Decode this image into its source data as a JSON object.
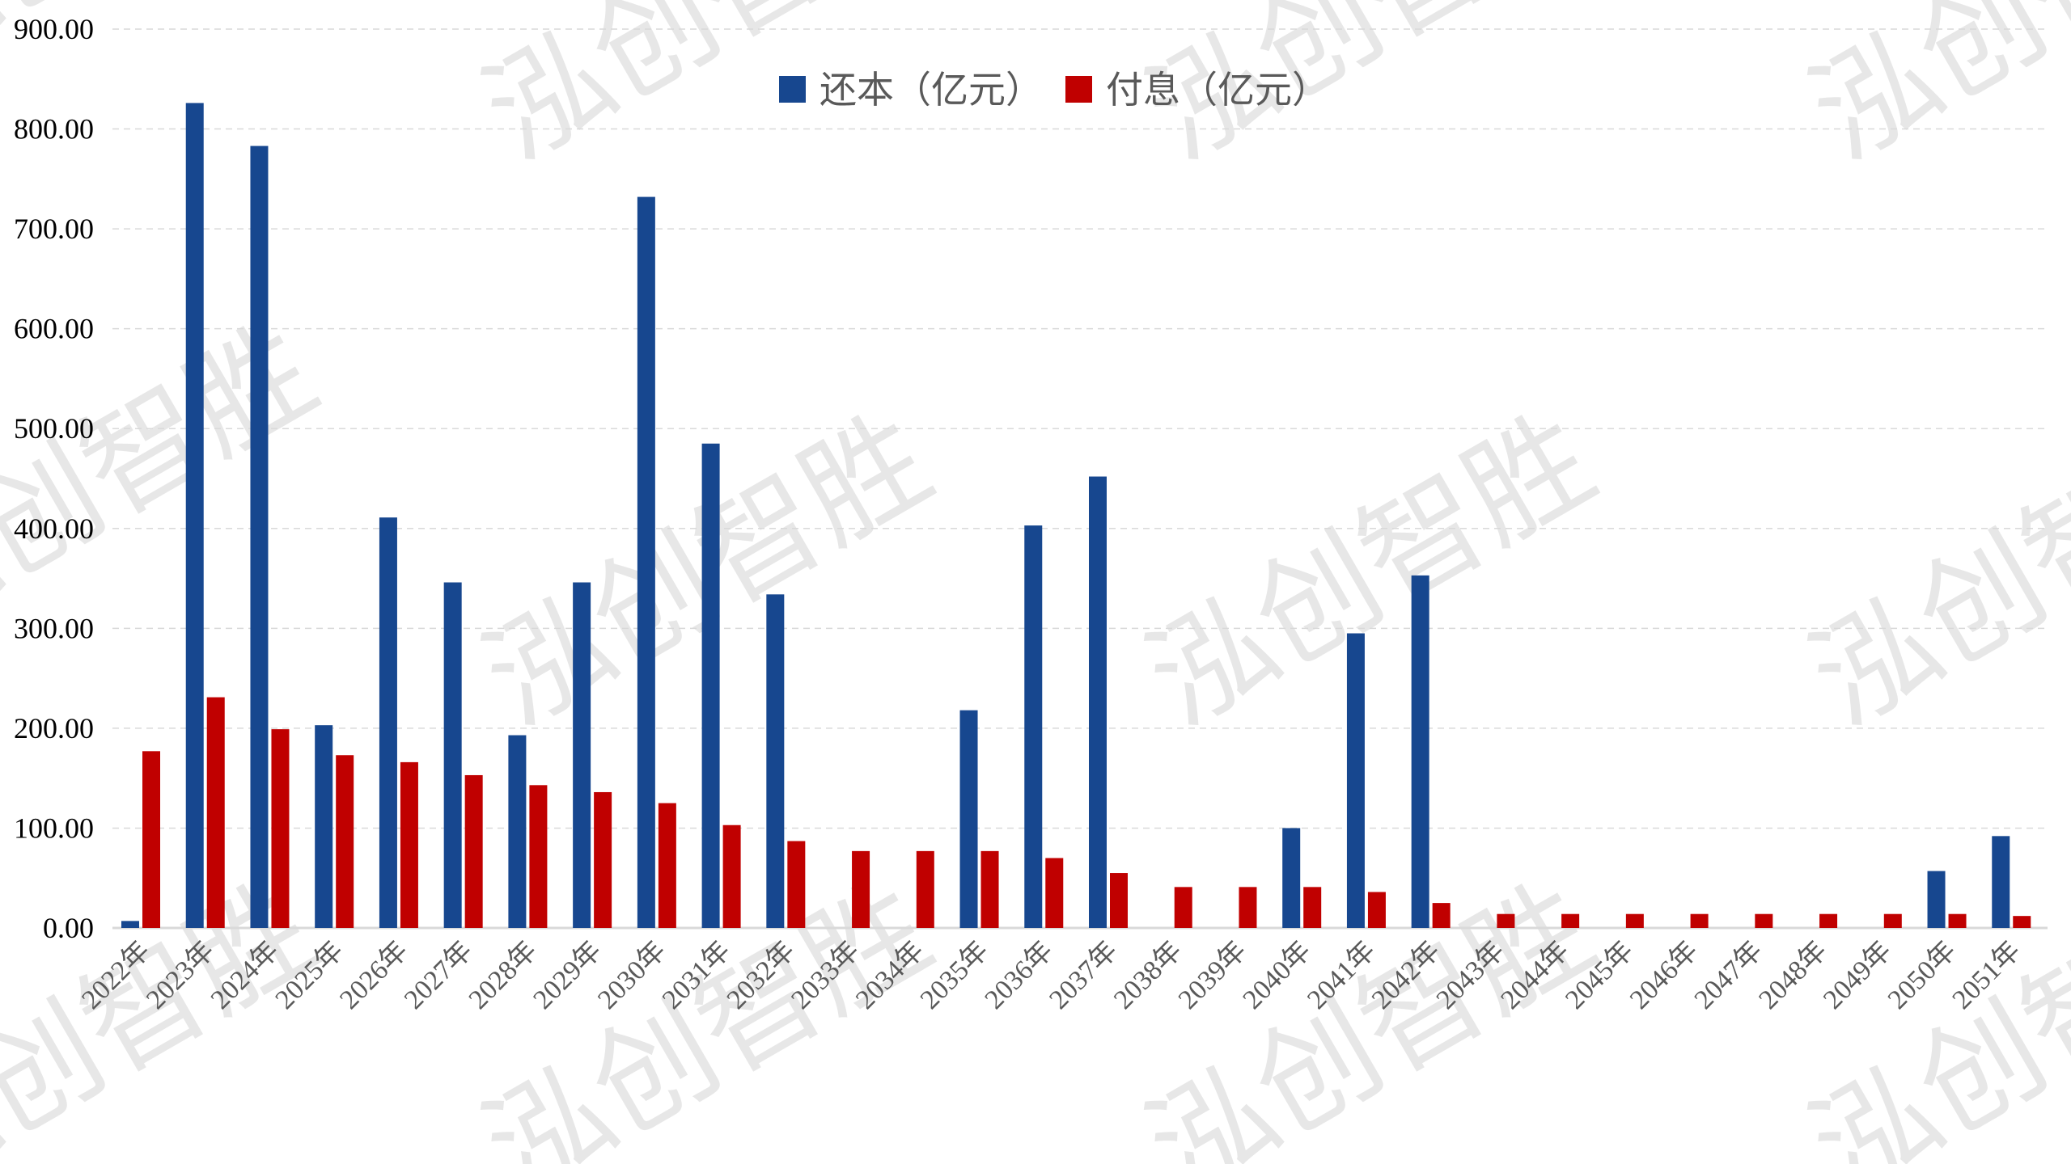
{
  "chart_data": {
    "type": "bar",
    "title": "",
    "xlabel": "",
    "ylabel": "",
    "ylim": [
      0,
      900
    ],
    "yticks": [
      "0.00",
      "100.00",
      "200.00",
      "300.00",
      "400.00",
      "500.00",
      "600.00",
      "700.00",
      "800.00",
      "900.00"
    ],
    "grid": true,
    "legend_position": "top",
    "categories": [
      "2022年",
      "2023年",
      "2024年",
      "2025年",
      "2026年",
      "2027年",
      "2028年",
      "2029年",
      "2030年",
      "2031年",
      "2032年",
      "2033年",
      "2034年",
      "2035年",
      "2036年",
      "2037年",
      "2038年",
      "2039年",
      "2040年",
      "2041年",
      "2042年",
      "2043年",
      "2044年",
      "2045年",
      "2046年",
      "2047年",
      "2048年",
      "2049年",
      "2050年",
      "2051年"
    ],
    "series": [
      {
        "name": "还本（亿元）",
        "color": "#17478F",
        "values": [
          7,
          826,
          783,
          203,
          411,
          346,
          193,
          346,
          732,
          485,
          334,
          0,
          0,
          218,
          403,
          452,
          0,
          0,
          100,
          295,
          353,
          0,
          0,
          0,
          0,
          0,
          0,
          0,
          57,
          92
        ]
      },
      {
        "name": "付息（亿元）",
        "color": "#C00000",
        "values": [
          177,
          231,
          199,
          173,
          166,
          153,
          143,
          136,
          125,
          103,
          87,
          77,
          77,
          77,
          70,
          55,
          41,
          41,
          41,
          36,
          25,
          14,
          14,
          14,
          14,
          14,
          14,
          14,
          14,
          12
        ]
      }
    ]
  },
  "watermark": "泓创智胜"
}
